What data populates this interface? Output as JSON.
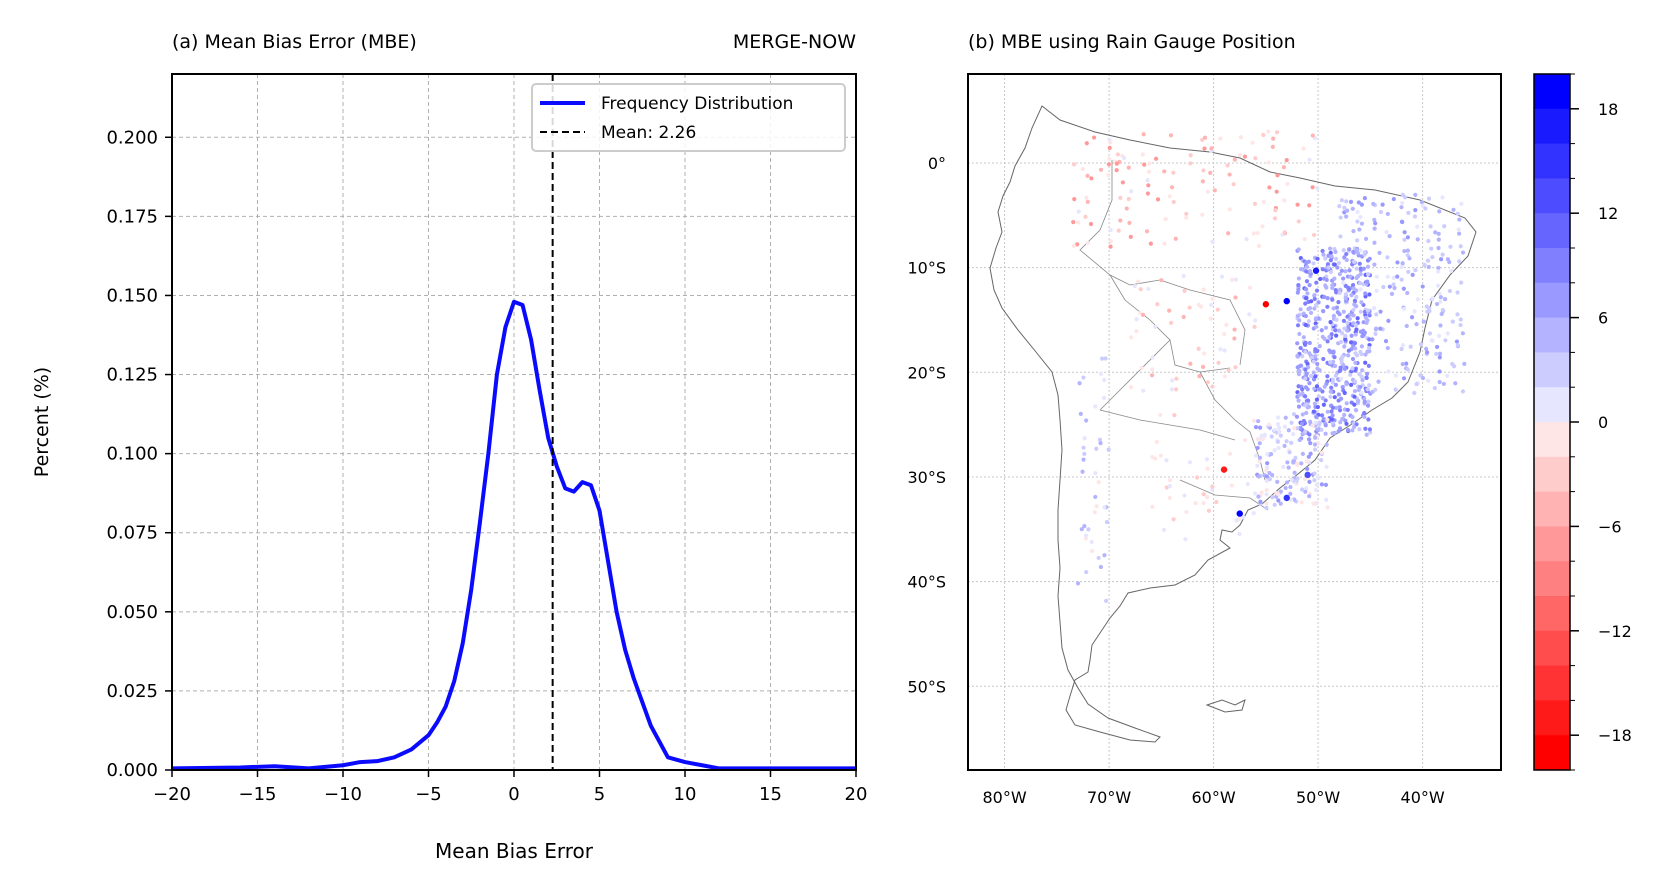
{
  "panel_a": {
    "title": "(a) Mean Bias Error (MBE)",
    "right_title": "MERGE-NOW",
    "xlabel": "Mean Bias Error",
    "ylabel": "Percent (%)",
    "legend": {
      "line_label": "Frequency Distribution",
      "mean_label": "Mean: 2.26"
    }
  },
  "panel_b": {
    "title": "(b) MBE using Rain Gauge Position",
    "lat_labels": [
      "0°",
      "10°S",
      "20°S",
      "30°S",
      "40°S",
      "50°S"
    ],
    "lon_labels": [
      "80°W",
      "70°W",
      "60°W",
      "50°W",
      "40°W"
    ]
  },
  "colorbar": {
    "tick_labels": [
      "18",
      "12",
      "6",
      "0",
      "−6",
      "−12",
      "−18"
    ],
    "colors_top_to_bottom": [
      "#0000ff",
      "#1a1aff",
      "#3333ff",
      "#4d4dff",
      "#6666ff",
      "#8080ff",
      "#9999ff",
      "#b3b3ff",
      "#ccccff",
      "#e6e6ff",
      "#ffe6e6",
      "#ffcccc",
      "#ffb3b3",
      "#ff9999",
      "#ff8080",
      "#ff6666",
      "#ff4d4d",
      "#ff3333",
      "#ff1a1a",
      "#ff0000"
    ]
  },
  "colors": {
    "line": "#0a0aff",
    "mean_line": "#000000",
    "grid": "#b0b0b0"
  },
  "chart_data": [
    {
      "type": "line",
      "title": "(a) Mean Bias Error (MBE)",
      "xlabel": "Mean Bias Error",
      "ylabel": "Percent (%)",
      "xlim": [
        -20,
        20
      ],
      "ylim": [
        0,
        0.22
      ],
      "xticks": [
        -20,
        -15,
        -10,
        -5,
        0,
        5,
        10,
        15,
        20
      ],
      "xtick_labels": [
        "−20",
        "−15",
        "−10",
        "−5",
        "0",
        "5",
        "10",
        "15",
        "20"
      ],
      "yticks": [
        0,
        0.025,
        0.05,
        0.075,
        0.1,
        0.125,
        0.15,
        0.175,
        0.2
      ],
      "ytick_labels": [
        "0.000",
        "0.025",
        "0.050",
        "0.075",
        "0.100",
        "0.125",
        "0.150",
        "0.175",
        "0.200"
      ],
      "grid": true,
      "legend_position": "top-right",
      "mean": 2.26,
      "series": [
        {
          "name": "Frequency Distribution",
          "x": [
            -20,
            -16,
            -14,
            -12,
            -10,
            -9,
            -8,
            -7,
            -6,
            -5,
            -4.5,
            -4,
            -3.5,
            -3,
            -2.5,
            -2,
            -1.5,
            -1,
            -0.5,
            0,
            0.5,
            1,
            1.5,
            2,
            2.5,
            3,
            3.5,
            4,
            4.5,
            5,
            5.5,
            6,
            6.5,
            7,
            8,
            9,
            10,
            11,
            12,
            15,
            20
          ],
          "y": [
            0.0005,
            0.0008,
            0.0012,
            0.0005,
            0.0015,
            0.0025,
            0.0028,
            0.004,
            0.0065,
            0.011,
            0.015,
            0.02,
            0.028,
            0.04,
            0.057,
            0.078,
            0.1,
            0.125,
            0.14,
            0.148,
            0.147,
            0.136,
            0.12,
            0.105,
            0.096,
            0.089,
            0.088,
            0.091,
            0.09,
            0.082,
            0.066,
            0.05,
            0.038,
            0.029,
            0.014,
            0.004,
            0.0025,
            0.0015,
            0.0005,
            0.0005,
            0.0005
          ]
        }
      ]
    },
    {
      "type": "scatter",
      "title": "(b) MBE using Rain Gauge Position",
      "xlim": [
        -83.5,
        -32.5
      ],
      "ylim": [
        -58,
        8.5
      ],
      "lon_ticks": [
        -80,
        -70,
        -60,
        -50,
        -40
      ],
      "lat_ticks": [
        0,
        -10,
        -20,
        -30,
        -40,
        -50
      ],
      "color_range": [
        -20,
        20
      ],
      "cbar_ticks": [
        18,
        12,
        6,
        0,
        -6,
        -12,
        -18
      ],
      "colormap": "bwr_r",
      "highlighted_points": [
        {
          "lon": -55,
          "lat": -13.5,
          "value": -20
        },
        {
          "lon": -53,
          "lat": -13.2,
          "value": 20
        },
        {
          "lon": -50.2,
          "lat": -10.3,
          "value": 18
        },
        {
          "lon": -59,
          "lat": -29.3,
          "value": -17
        },
        {
          "lon": -57.5,
          "lat": -33.5,
          "value": 20
        },
        {
          "lon": -53,
          "lat": -32,
          "value": 16
        },
        {
          "lon": -51,
          "lat": -29.8,
          "value": 14
        }
      ]
    }
  ]
}
